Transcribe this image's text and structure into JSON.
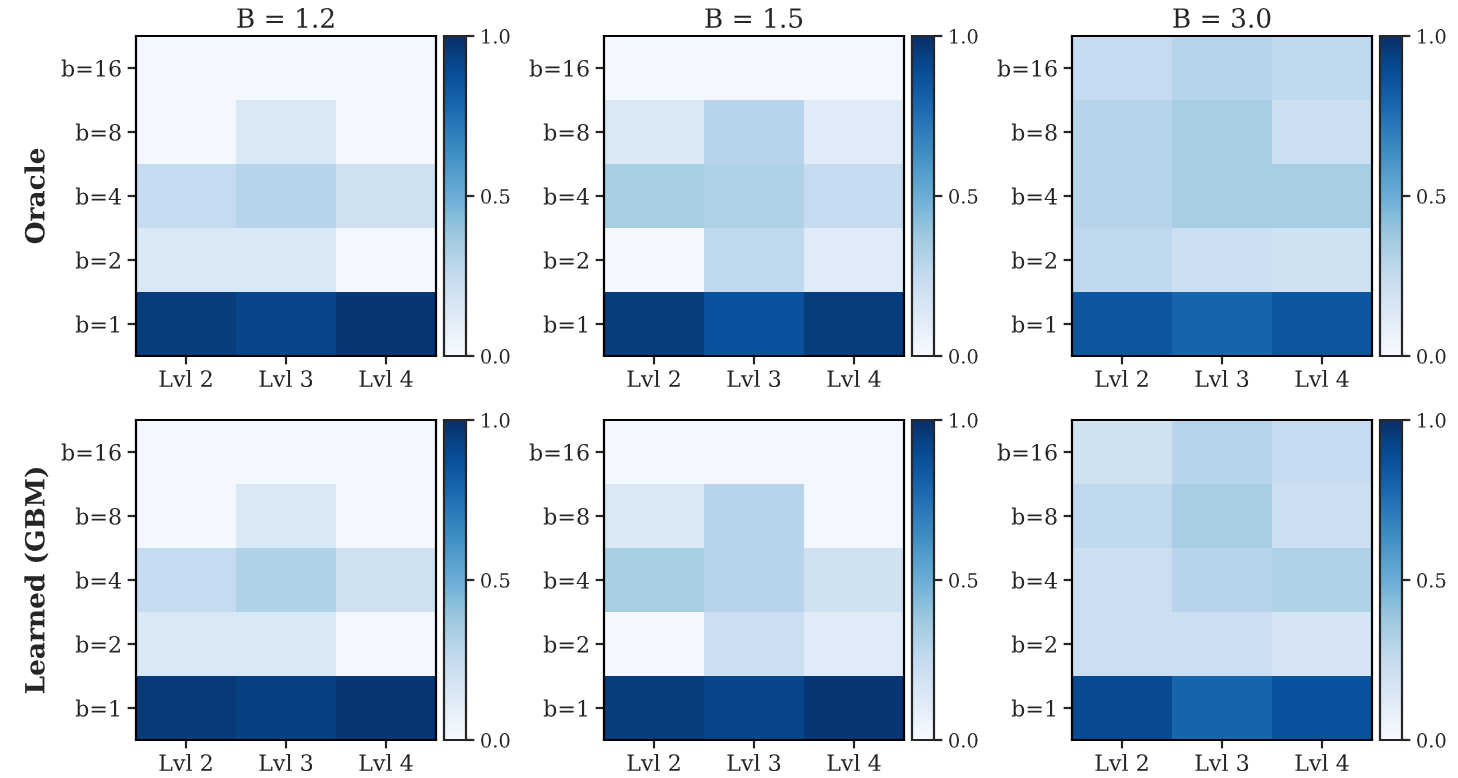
{
  "chart_data": [
    {
      "type": "heatmap",
      "title": "B = 1.2",
      "ylabel": "Oracle",
      "categories": [
        "Lvl 2",
        "Lvl 3",
        "Lvl 4"
      ],
      "y_categories": [
        "b=16",
        "b=8",
        "b=4",
        "b=2",
        "b=1"
      ],
      "clim": [
        0,
        1
      ],
      "cticks": [
        {
          "value": 0,
          "label": "0.0"
        },
        {
          "value": 0.5,
          "label": "0.5"
        },
        {
          "value": 1,
          "label": "1.0"
        }
      ],
      "cells": [
        [
          0.02,
          0.02,
          0.02
        ],
        [
          0.02,
          0.15,
          0.02
        ],
        [
          0.25,
          0.3,
          0.2
        ],
        [
          0.15,
          0.15,
          0.02
        ],
        [
          0.95,
          0.92,
          0.98
        ]
      ]
    },
    {
      "type": "heatmap",
      "title": "B = 1.5",
      "categories": [
        "Lvl 2",
        "Lvl 3",
        "Lvl 4"
      ],
      "y_categories": [
        "b=16",
        "b=8",
        "b=4",
        "b=2",
        "b=1"
      ],
      "clim": [
        0,
        1
      ],
      "cticks": [
        {
          "value": 0,
          "label": "0.0"
        },
        {
          "value": 0.5,
          "label": "0.5"
        },
        {
          "value": 1,
          "label": "1.0"
        }
      ],
      "cells": [
        [
          0.02,
          0.02,
          0.02
        ],
        [
          0.15,
          0.3,
          0.12
        ],
        [
          0.35,
          0.32,
          0.25
        ],
        [
          0.02,
          0.27,
          0.12
        ],
        [
          0.95,
          0.87,
          0.95
        ]
      ]
    },
    {
      "type": "heatmap",
      "title": "B = 3.0",
      "categories": [
        "Lvl 2",
        "Lvl 3",
        "Lvl 4"
      ],
      "y_categories": [
        "b=16",
        "b=8",
        "b=4",
        "b=2",
        "b=1"
      ],
      "clim": [
        0,
        1
      ],
      "cticks": [
        {
          "value": 0,
          "label": "0.0"
        },
        {
          "value": 0.5,
          "label": "0.5"
        },
        {
          "value": 1,
          "label": "1.0"
        }
      ],
      "cells": [
        [
          0.25,
          0.3,
          0.27
        ],
        [
          0.3,
          0.35,
          0.22
        ],
        [
          0.3,
          0.35,
          0.35
        ],
        [
          0.27,
          0.22,
          0.2
        ],
        [
          0.85,
          0.8,
          0.85
        ]
      ]
    },
    {
      "type": "heatmap",
      "ylabel": "Learned (GBM)",
      "categories": [
        "Lvl 2",
        "Lvl 3",
        "Lvl 4"
      ],
      "y_categories": [
        "b=16",
        "b=8",
        "b=4",
        "b=2",
        "b=1"
      ],
      "clim": [
        0,
        1
      ],
      "cticks": [
        {
          "value": 0,
          "label": "0.0"
        },
        {
          "value": 0.5,
          "label": "0.5"
        },
        {
          "value": 1,
          "label": "1.0"
        }
      ],
      "cells": [
        [
          0.02,
          0.02,
          0.02
        ],
        [
          0.02,
          0.15,
          0.02
        ],
        [
          0.25,
          0.32,
          0.2
        ],
        [
          0.15,
          0.15,
          0.02
        ],
        [
          0.96,
          0.94,
          0.98
        ]
      ]
    },
    {
      "type": "heatmap",
      "categories": [
        "Lvl 2",
        "Lvl 3",
        "Lvl 4"
      ],
      "y_categories": [
        "b=16",
        "b=8",
        "b=4",
        "b=2",
        "b=1"
      ],
      "clim": [
        0,
        1
      ],
      "cticks": [
        {
          "value": 0,
          "label": "0.0"
        },
        {
          "value": 0.5,
          "label": "0.5"
        },
        {
          "value": 1,
          "label": "1.0"
        }
      ],
      "cells": [
        [
          0.02,
          0.02,
          0.02
        ],
        [
          0.15,
          0.3,
          0.02
        ],
        [
          0.35,
          0.3,
          0.2
        ],
        [
          0.02,
          0.22,
          0.12
        ],
        [
          0.95,
          0.92,
          0.98
        ]
      ]
    },
    {
      "type": "heatmap",
      "categories": [
        "Lvl 2",
        "Lvl 3",
        "Lvl 4"
      ],
      "y_categories": [
        "b=16",
        "b=8",
        "b=4",
        "b=2",
        "b=1"
      ],
      "clim": [
        0,
        1
      ],
      "cticks": [
        {
          "value": 0,
          "label": "0.0"
        },
        {
          "value": 0.5,
          "label": "0.5"
        },
        {
          "value": 1,
          "label": "1.0"
        }
      ],
      "cells": [
        [
          0.2,
          0.3,
          0.25
        ],
        [
          0.27,
          0.35,
          0.22
        ],
        [
          0.22,
          0.3,
          0.32
        ],
        [
          0.22,
          0.22,
          0.17
        ],
        [
          0.9,
          0.8,
          0.87
        ]
      ]
    }
  ]
}
